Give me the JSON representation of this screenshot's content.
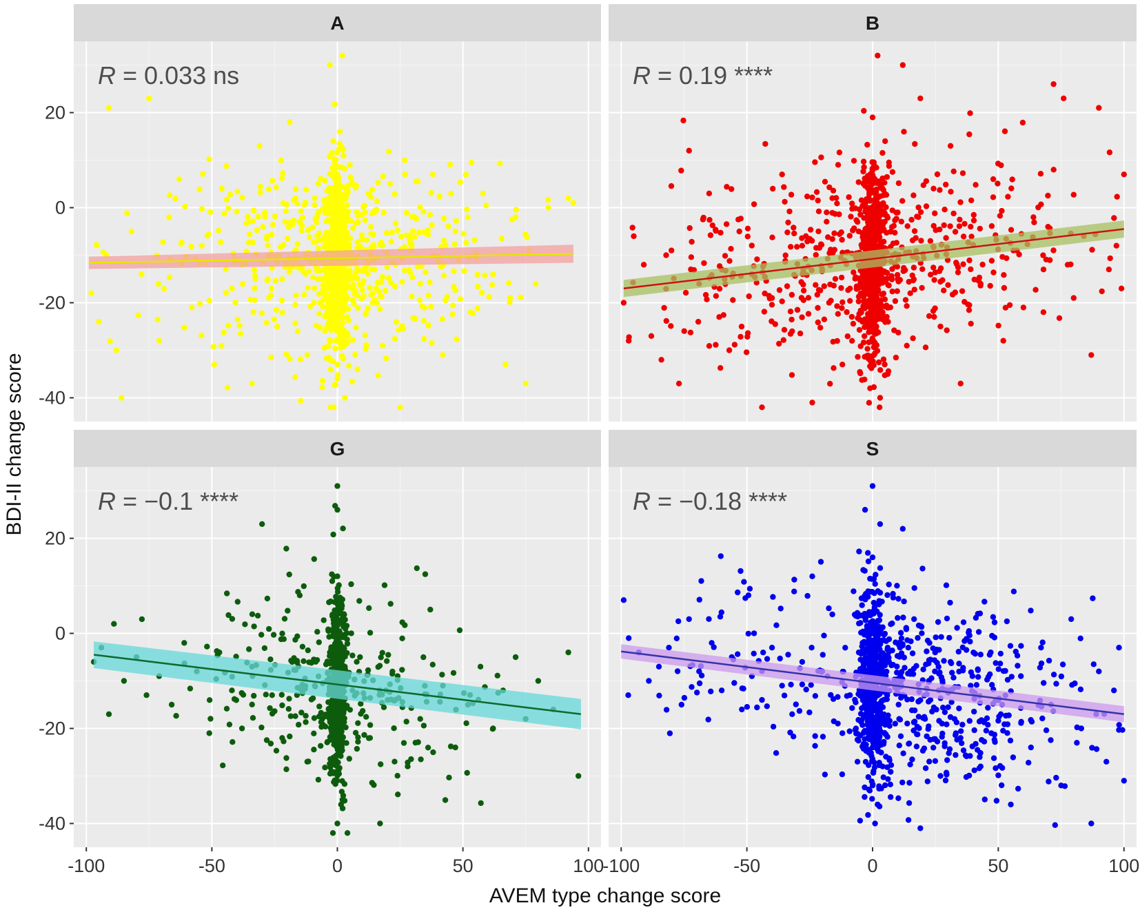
{
  "chart_data": {
    "type": "scatter",
    "layout": "facet-grid-2x2",
    "xlabel": "AVEM type change score",
    "ylabel": "BDI-II change score",
    "xlim": [
      -105,
      105
    ],
    "ylim": [
      -45,
      35
    ],
    "xticks": [
      -100,
      -50,
      0,
      50,
      100
    ],
    "yticks": [
      -40,
      -20,
      0,
      20
    ],
    "xtick_labels": [
      "-100",
      "-50",
      "0",
      "50",
      "100"
    ],
    "ytick_labels": [
      "-40",
      "-20",
      "0",
      "20"
    ],
    "grid": true,
    "panels": [
      {
        "id": "A",
        "label": "A",
        "annotation_r": "R",
        "annotation_rest": " = 0.033 ns",
        "point_color": "#ffff00",
        "line_color": "#e6e600",
        "band_color": "#f4a0a0",
        "fit": {
          "x0": -99,
          "y0": -11.6,
          "x1": 94,
          "y1": -9.7,
          "se0": 1.3,
          "se1": 1.9
        },
        "sample_points": [
          [
            -98,
            -18
          ],
          [
            -95,
            -24
          ],
          [
            -92,
            -10
          ],
          [
            -91,
            21
          ],
          [
            -88,
            -30
          ],
          [
            -86,
            -40
          ],
          [
            -82,
            -5
          ],
          [
            -78,
            -14
          ],
          [
            -75,
            23
          ],
          [
            -71,
            -28
          ],
          [
            -67,
            -2
          ],
          [
            -63,
            6
          ],
          [
            -58,
            -21
          ],
          [
            -54,
            -8
          ],
          [
            -49,
            -33
          ],
          [
            -46,
            4
          ],
          [
            -42,
            -17
          ],
          [
            -38,
            -12
          ],
          [
            -34,
            -37
          ],
          [
            -31,
            13
          ],
          [
            -28,
            -6
          ],
          [
            -24,
            -25
          ],
          [
            -19,
            18
          ],
          [
            -16,
            -11
          ],
          [
            -12,
            -31
          ],
          [
            -9,
            2
          ],
          [
            -6,
            -15
          ],
          [
            -4,
            -22
          ],
          [
            -3,
            30
          ],
          [
            -1,
            -8
          ],
          [
            0,
            -36
          ],
          [
            0,
            -19
          ],
          [
            0,
            7
          ],
          [
            1,
            -27
          ],
          [
            1,
            16
          ],
          [
            2,
            -13
          ],
          [
            2,
            32
          ],
          [
            3,
            -40
          ],
          [
            3,
            -4
          ],
          [
            4,
            -23
          ],
          [
            5,
            9
          ],
          [
            6,
            -17
          ],
          [
            8,
            -34
          ],
          [
            11,
            -1
          ],
          [
            14,
            -20
          ],
          [
            18,
            -29
          ],
          [
            21,
            5
          ],
          [
            25,
            -42
          ],
          [
            29,
            -9
          ],
          [
            33,
            -16
          ],
          [
            38,
            7
          ],
          [
            42,
            -31
          ],
          [
            47,
            -5
          ],
          [
            53,
            -22
          ],
          [
            58,
            3
          ],
          [
            62,
            -14
          ],
          [
            67,
            -33
          ],
          [
            71,
            -2
          ],
          [
            75,
            -37
          ],
          [
            79,
            -16
          ],
          [
            84,
            0
          ],
          [
            92,
            2
          ],
          [
            94,
            1
          ]
        ]
      },
      {
        "id": "B",
        "label": "B",
        "annotation_r": "R",
        "annotation_rest": " = 0.19 ****",
        "point_color": "#ee0000",
        "line_color": "#cc1111",
        "band_color": "#a8c060",
        "fit": {
          "x0": -99,
          "y0": -17,
          "x1": 100,
          "y1": -4.5,
          "se0": 1.8,
          "se1": 1.8
        },
        "sample_points": [
          [
            -99,
            -20
          ],
          [
            -97,
            -28
          ],
          [
            -95,
            -6
          ],
          [
            -91,
            -12
          ],
          [
            -88,
            -27
          ],
          [
            -84,
            -32
          ],
          [
            -80,
            -9
          ],
          [
            -77,
            -37
          ],
          [
            -73,
            12
          ],
          [
            -69,
            -16
          ],
          [
            -65,
            3
          ],
          [
            -61,
            -23
          ],
          [
            -57,
            -30
          ],
          [
            -53,
            -5
          ],
          [
            -48,
            -14
          ],
          [
            -44,
            -42
          ],
          [
            -40,
            -19
          ],
          [
            -36,
            7
          ],
          [
            -32,
            -26
          ],
          [
            -28,
            -8
          ],
          [
            -24,
            -41
          ],
          [
            -20,
            -13
          ],
          [
            -16,
            2
          ],
          [
            -12,
            -33
          ],
          [
            -9,
            -17
          ],
          [
            -6,
            -3
          ],
          [
            -4,
            -24
          ],
          [
            -2,
            -11
          ],
          [
            -1,
            -38
          ],
          [
            0,
            -20
          ],
          [
            0,
            5
          ],
          [
            0,
            19
          ],
          [
            1,
            -29
          ],
          [
            1,
            -8
          ],
          [
            2,
            32
          ],
          [
            2,
            -15
          ],
          [
            3,
            -40
          ],
          [
            3,
            0
          ],
          [
            4,
            -22
          ],
          [
            5,
            14
          ],
          [
            6,
            -35
          ],
          [
            8,
            -10
          ],
          [
            10,
            -1
          ],
          [
            12,
            30
          ],
          [
            15,
            -18
          ],
          [
            19,
            23
          ],
          [
            23,
            -7
          ],
          [
            27,
            -25
          ],
          [
            31,
            13
          ],
          [
            35,
            -37
          ],
          [
            39,
            -4
          ],
          [
            43,
            -16
          ],
          [
            48,
            6
          ],
          [
            52,
            -28
          ],
          [
            56,
            -9
          ],
          [
            60,
            -21
          ],
          [
            64,
            -2
          ],
          [
            68,
            -13
          ],
          [
            72,
            26
          ],
          [
            76,
            23
          ],
          [
            80,
            -19
          ],
          [
            84,
            -6
          ],
          [
            87,
            -31
          ],
          [
            90,
            21
          ],
          [
            94,
            -13
          ],
          [
            97,
            -8
          ],
          [
            99,
            -17
          ],
          [
            100,
            7
          ]
        ]
      },
      {
        "id": "G",
        "label": "G",
        "annotation_r": "R",
        "annotation_rest": " = −0.1 ****",
        "point_color": "#0d5c0d",
        "line_color": "#0e6a2e",
        "band_color": "#66d8d8",
        "fit": {
          "x0": -97,
          "y0": -4.5,
          "x1": 97,
          "y1": -17,
          "se0": 2.8,
          "se1": 3.2
        },
        "sample_points": [
          [
            -97,
            -6
          ],
          [
            -94,
            -3
          ],
          [
            -91,
            -17
          ],
          [
            -89,
            2
          ],
          [
            -85,
            -10
          ],
          [
            -80,
            -5
          ],
          [
            -76,
            -13
          ],
          [
            -71,
            -9
          ],
          [
            -66,
            -15
          ],
          [
            -61,
            -2
          ],
          [
            -56,
            -8
          ],
          [
            -51,
            -21
          ],
          [
            -47,
            -4
          ],
          [
            -42,
            -12
          ],
          [
            -38,
            -20
          ],
          [
            -34,
            -7
          ],
          [
            -30,
            23
          ],
          [
            -26,
            -13
          ],
          [
            -22,
            -22
          ],
          [
            -18,
            -6
          ],
          [
            -15,
            8
          ],
          [
            -12,
            -27
          ],
          [
            -9,
            -11
          ],
          [
            -6,
            -18
          ],
          [
            -3,
            -4
          ],
          [
            -2,
            -14
          ],
          [
            -1,
            -9
          ],
          [
            0,
            -29
          ],
          [
            0,
            -20
          ],
          [
            0,
            -40
          ],
          [
            0,
            3
          ],
          [
            0,
            12
          ],
          [
            0,
            26
          ],
          [
            0,
            31
          ],
          [
            1,
            -24
          ],
          [
            1,
            -2
          ],
          [
            2,
            -16
          ],
          [
            2,
            -35
          ],
          [
            3,
            -7
          ],
          [
            4,
            -42
          ],
          [
            6,
            -12
          ],
          [
            9,
            -5
          ],
          [
            13,
            -22
          ],
          [
            17,
            -40
          ],
          [
            20,
            -14
          ],
          [
            24,
            -9
          ],
          [
            28,
            -28
          ],
          [
            33,
            -18
          ],
          [
            37,
            5
          ],
          [
            42,
            -11
          ],
          [
            47,
            -24
          ],
          [
            52,
            -15
          ],
          [
            57,
            -7
          ],
          [
            62,
            -20
          ],
          [
            66,
            -12
          ],
          [
            71,
            -5
          ],
          [
            75,
            -18
          ],
          [
            80,
            -10
          ],
          [
            86,
            -16
          ],
          [
            92,
            -4
          ],
          [
            96,
            -30
          ]
        ]
      },
      {
        "id": "S",
        "label": "S",
        "annotation_r": "R",
        "annotation_rest": " = −0.18 ****",
        "point_color": "#0000ee",
        "line_color": "#3333aa",
        "band_color": "#cc99ee",
        "fit": {
          "x0": -100,
          "y0": -3.8,
          "x1": 100,
          "y1": -17,
          "se0": 1.5,
          "se1": 1.7
        },
        "sample_points": [
          [
            -99,
            7
          ],
          [
            -97,
            -1
          ],
          [
            -93,
            -4
          ],
          [
            -89,
            -10
          ],
          [
            -85,
            -7
          ],
          [
            -81,
            -3
          ],
          [
            -76,
            -15
          ],
          [
            -73,
            3
          ],
          [
            -69,
            -8
          ],
          [
            -64,
            -2
          ],
          [
            -60,
            -12
          ],
          [
            -56,
            -5
          ],
          [
            -52,
            -16
          ],
          [
            -48,
            -9
          ],
          [
            -44,
            -14
          ],
          [
            -40,
            -3
          ],
          [
            -36,
            -11
          ],
          [
            -32,
            -17
          ],
          [
            -28,
            -6
          ],
          [
            -24,
            12
          ],
          [
            -20,
            -8
          ],
          [
            -16,
            4
          ],
          [
            -12,
            -21
          ],
          [
            -9,
            -13
          ],
          [
            -6,
            -27
          ],
          [
            -4,
            -2
          ],
          [
            -3,
            26
          ],
          [
            -2,
            -18
          ],
          [
            -1,
            -9
          ],
          [
            0,
            -32
          ],
          [
            0,
            -24
          ],
          [
            0,
            -15
          ],
          [
            0,
            2
          ],
          [
            0,
            16
          ],
          [
            0,
            31
          ],
          [
            1,
            -40
          ],
          [
            1,
            -6
          ],
          [
            2,
            -36
          ],
          [
            2,
            -12
          ],
          [
            3,
            23
          ],
          [
            4,
            -28
          ],
          [
            6,
            -3
          ],
          [
            9,
            -19
          ],
          [
            12,
            22
          ],
          [
            15,
            -8
          ],
          [
            19,
            -41
          ],
          [
            23,
            -14
          ],
          [
            27,
            -30
          ],
          [
            31,
            -6
          ],
          [
            35,
            -22
          ],
          [
            39,
            -11
          ],
          [
            43,
            -28
          ],
          [
            47,
            -4
          ],
          [
            51,
            -17
          ],
          [
            55,
            -36
          ],
          [
            59,
            -9
          ],
          [
            63,
            -24
          ],
          [
            67,
            -3
          ],
          [
            71,
            -15
          ],
          [
            75,
            -32
          ],
          [
            79,
            3
          ],
          [
            83,
            -20
          ],
          [
            87,
            -40
          ],
          [
            90,
            -8
          ],
          [
            93,
            -27
          ],
          [
            96,
            -12
          ],
          [
            98,
            -3
          ],
          [
            100,
            -31
          ]
        ]
      }
    ]
  }
}
